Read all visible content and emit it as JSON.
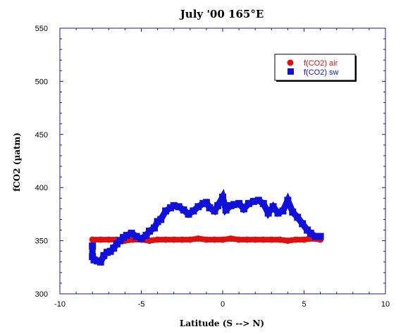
{
  "chart_data": {
    "type": "scatter",
    "title": "July '00 165°E",
    "xlabel": "Latitude (S --> N)",
    "ylabel": "fCO2 (µatm)",
    "xlim": [
      -10,
      10
    ],
    "ylim": [
      300,
      550
    ],
    "x_ticks": [
      "-10",
      "-5",
      "0",
      "5",
      "10"
    ],
    "y_ticks": [
      "300",
      "350",
      "400",
      "450",
      "500",
      "550"
    ],
    "grid": false,
    "legend_position": "top-right",
    "series": [
      {
        "name": "f(CO2) air",
        "color": "#e01010",
        "marker": "circle",
        "x": [
          -8.0,
          -7.5,
          -7.0,
          -6.5,
          -6.0,
          -5.5,
          -5.0,
          -4.5,
          -4.0,
          -3.5,
          -3.0,
          -2.5,
          -2.0,
          -1.5,
          -1.0,
          -0.5,
          0.0,
          0.5,
          1.0,
          1.5,
          2.0,
          2.5,
          3.0,
          3.5,
          4.0,
          4.5,
          5.0,
          5.5,
          6.0
        ],
        "y": [
          351,
          351,
          351,
          351,
          350,
          351,
          351,
          350,
          351,
          351,
          351,
          351,
          351,
          352,
          351,
          351,
          351,
          352,
          351,
          351,
          351,
          351,
          351,
          351,
          350,
          351,
          351,
          352,
          351
        ]
      },
      {
        "name": "f(CO2) sw",
        "color": "#1010d8",
        "marker": "square",
        "x": [
          -8.0,
          -8.0,
          -7.9,
          -7.7,
          -7.5,
          -7.3,
          -7.1,
          -6.9,
          -6.7,
          -6.5,
          -6.3,
          -6.1,
          -5.9,
          -5.6,
          -5.3,
          -5.0,
          -4.7,
          -4.5,
          -4.2,
          -4.0,
          -3.8,
          -3.5,
          -3.2,
          -3.0,
          -2.7,
          -2.4,
          -2.1,
          -1.8,
          -1.5,
          -1.2,
          -1.0,
          -0.8,
          -0.5,
          -0.3,
          0.0,
          0.2,
          0.5,
          0.7,
          1.0,
          1.3,
          1.6,
          1.9,
          2.2,
          2.5,
          2.8,
          3.1,
          3.4,
          3.7,
          4.0,
          4.3,
          4.6,
          4.9,
          5.2,
          5.4,
          5.7,
          6.0
        ],
        "y": [
          345,
          335,
          332,
          331,
          330,
          336,
          339,
          340,
          343,
          347,
          350,
          353,
          355,
          357,
          354,
          352,
          355,
          359,
          362,
          368,
          370,
          378,
          381,
          383,
          382,
          379,
          375,
          378,
          382,
          385,
          386,
          381,
          378,
          383,
          391,
          379,
          383,
          384,
          385,
          380,
          385,
          387,
          388,
          385,
          376,
          382,
          376,
          378,
          388,
          377,
          372,
          366,
          360,
          357,
          354,
          354
        ]
      }
    ]
  }
}
